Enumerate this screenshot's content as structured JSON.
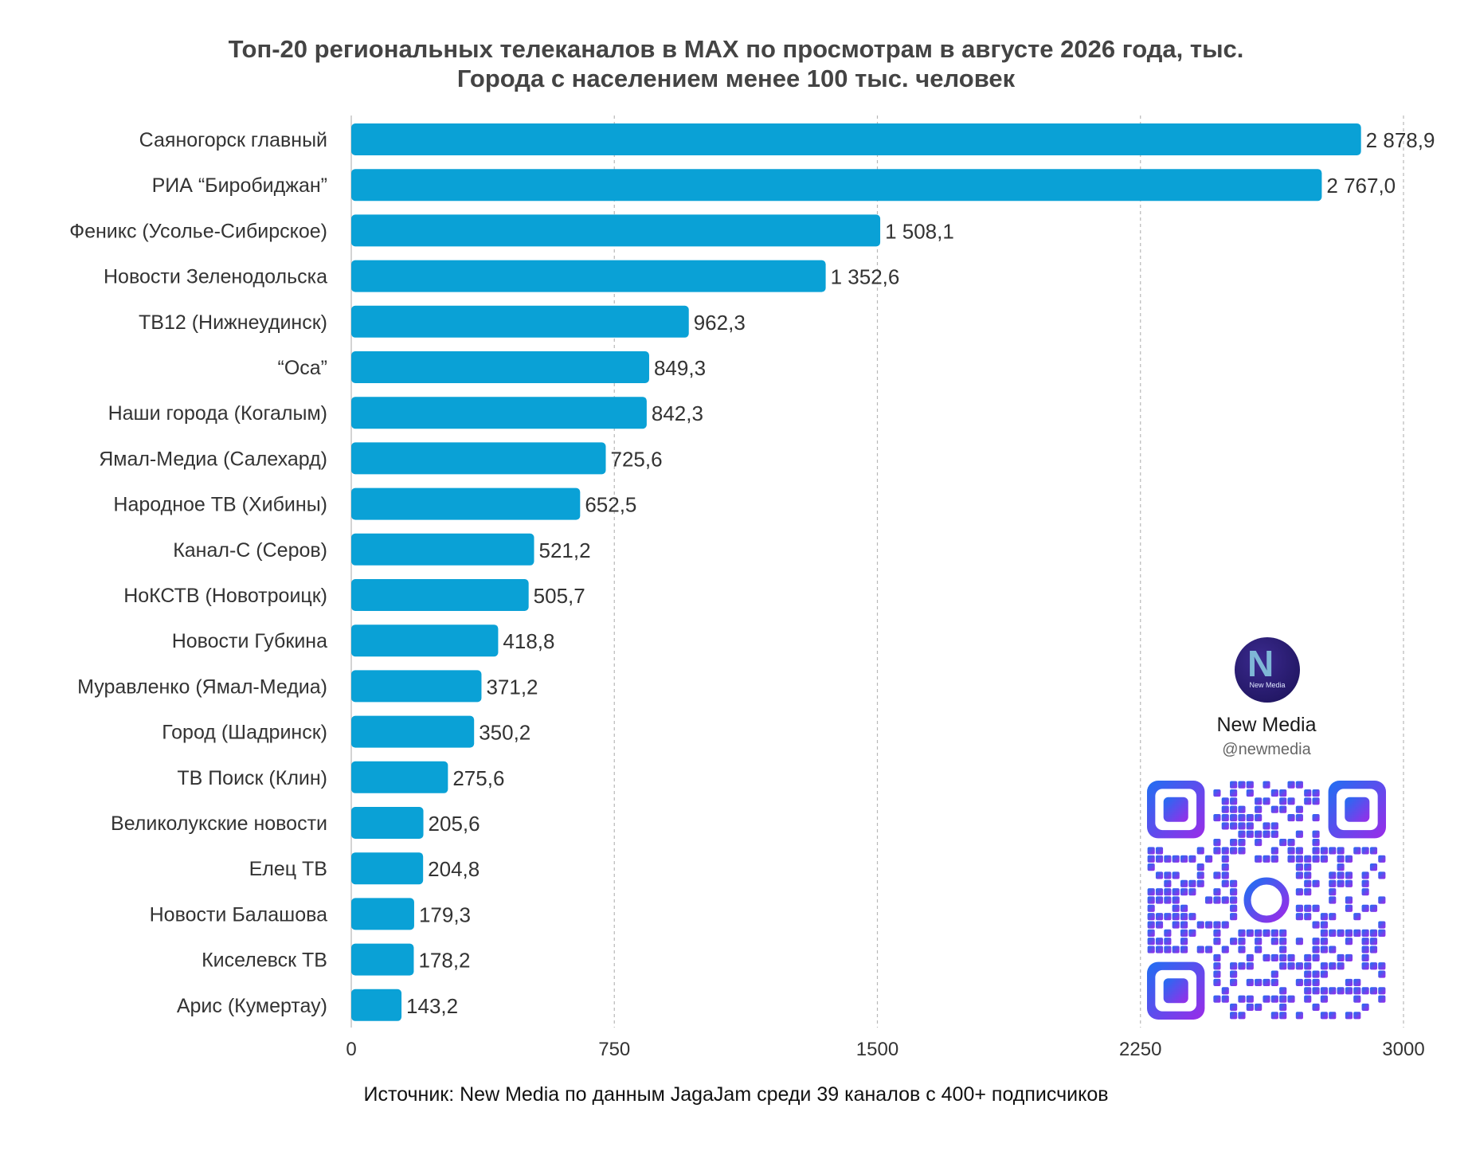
{
  "title_line1": "Топ-20 региональных телеканалов в MAX по просмотрам в августе 2026 года, тыс.",
  "title_line2": "Города с населением менее 100 тыс. человек",
  "source": "Источник: New Media по данным JagaJam среди 39 каналов с 400+ подписчиков",
  "brand": {
    "name": "New Media",
    "handle": "@newmedia",
    "logo_text": "New Media",
    "logo_color": "#2a1d78"
  },
  "colors": {
    "bar": "#0aa1d6",
    "grid": "#b8b8b8",
    "qr_start": "#1f6ff2",
    "qr_end": "#9b2be8"
  },
  "chart_data": {
    "type": "bar",
    "orientation": "horizontal",
    "categories": [
      "Саяногорск главный",
      "РИА “Биробиджан”",
      "Феникс (Усолье-Сибирское)",
      "Новости Зеленодольска",
      "ТВ12 (Нижнеудинск)",
      "“Оса”",
      "Наши города (Когалым)",
      "Ямал-Медиа (Салехард)",
      "Народное ТВ (Хибины)",
      "Канал-С (Серов)",
      "НоКСТВ (Новотроицк)",
      "Новости Губкина",
      "Муравленко (Ямал-Медиа)",
      "Город (Шадринск)",
      "ТВ Поиск (Клин)",
      "Великолукские новости",
      "Елец ТВ",
      "Новости Балашова",
      "Киселевск ТВ",
      "Арис (Кумертау)"
    ],
    "values": [
      2878.9,
      2767.0,
      1508.1,
      1352.6,
      962.3,
      849.3,
      842.3,
      725.6,
      652.5,
      521.2,
      505.7,
      418.8,
      371.2,
      350.2,
      275.6,
      205.6,
      204.8,
      179.3,
      178.2,
      143.2
    ],
    "value_labels": [
      "2 878,9",
      "2 767,0",
      "1 508,1",
      "1 352,6",
      "962,3",
      "849,3",
      "842,3",
      "725,6",
      "652,5",
      "521,2",
      "505,7",
      "418,8",
      "371,2",
      "350,2",
      "275,6",
      "205,6",
      "204,8",
      "179,3",
      "178,2",
      "143,2"
    ],
    "xlim": [
      0,
      3000
    ],
    "xticks": [
      0,
      750,
      1500,
      2250,
      3000
    ],
    "xtick_labels": [
      "0",
      "750",
      "1500",
      "2250",
      "3000"
    ],
    "grid": "vertical dashed",
    "legend": "none"
  }
}
